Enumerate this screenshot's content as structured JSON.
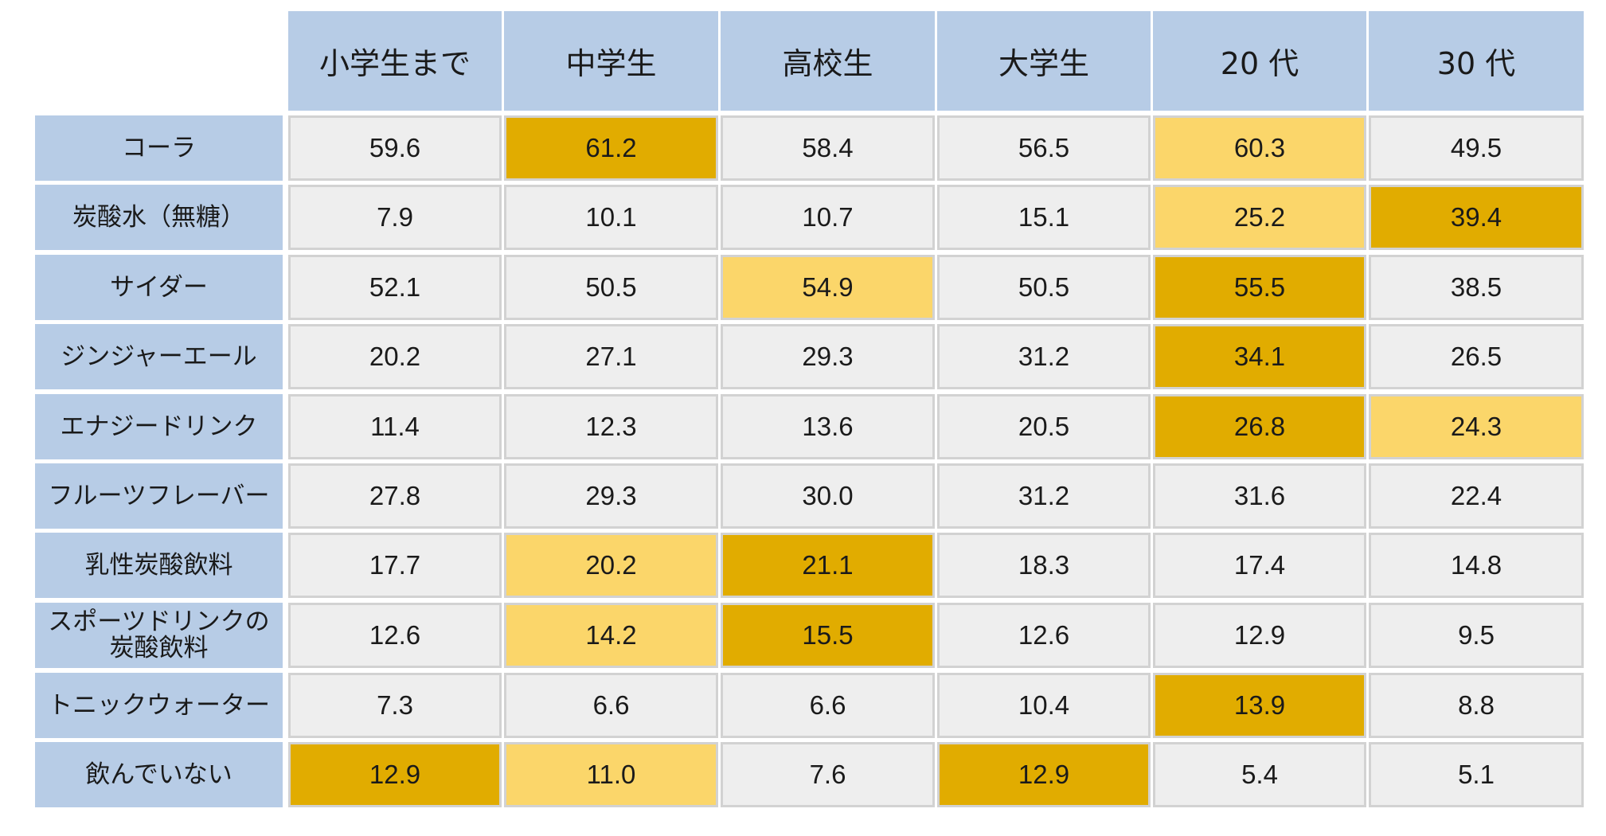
{
  "chart_data": {
    "type": "table",
    "columns": [
      "小学生まで",
      "中学生",
      "高校生",
      "大学生",
      "20 代",
      "30 代"
    ],
    "rows": [
      {
        "label": "コーラ",
        "values": [
          "59.6",
          "61.2",
          "58.4",
          "56.5",
          "60.3",
          "49.5"
        ],
        "highlight": [
          "none",
          "dark",
          "none",
          "none",
          "light",
          "none"
        ]
      },
      {
        "label": "炭酸水（無糖）",
        "values": [
          "7.9",
          "10.1",
          "10.7",
          "15.1",
          "25.2",
          "39.4"
        ],
        "highlight": [
          "none",
          "none",
          "none",
          "none",
          "light",
          "dark"
        ]
      },
      {
        "label": "サイダー",
        "values": [
          "52.1",
          "50.5",
          "54.9",
          "50.5",
          "55.5",
          "38.5"
        ],
        "highlight": [
          "none",
          "none",
          "light",
          "none",
          "dark",
          "none"
        ]
      },
      {
        "label": "ジンジャーエール",
        "values": [
          "20.2",
          "27.1",
          "29.3",
          "31.2",
          "34.1",
          "26.5"
        ],
        "highlight": [
          "none",
          "none",
          "none",
          "none",
          "dark",
          "none"
        ]
      },
      {
        "label": "エナジードリンク",
        "values": [
          "11.4",
          "12.3",
          "13.6",
          "20.5",
          "26.8",
          "24.3"
        ],
        "highlight": [
          "none",
          "none",
          "none",
          "none",
          "dark",
          "light"
        ]
      },
      {
        "label": "フルーツフレーバー",
        "values": [
          "27.8",
          "29.3",
          "30.0",
          "31.2",
          "31.6",
          "22.4"
        ],
        "highlight": [
          "none",
          "none",
          "none",
          "none",
          "none",
          "none"
        ]
      },
      {
        "label": "乳性炭酸飲料",
        "values": [
          "17.7",
          "20.2",
          "21.1",
          "18.3",
          "17.4",
          "14.8"
        ],
        "highlight": [
          "none",
          "light",
          "dark",
          "none",
          "none",
          "none"
        ]
      },
      {
        "label": "スポーツドリンクの炭酸飲料",
        "values": [
          "12.6",
          "14.2",
          "15.5",
          "12.6",
          "12.9",
          "9.5"
        ],
        "highlight": [
          "none",
          "light",
          "dark",
          "none",
          "none",
          "none"
        ]
      },
      {
        "label": "トニックウォーター",
        "values": [
          "7.3",
          "6.6",
          "6.6",
          "10.4",
          "13.9",
          "8.8"
        ],
        "highlight": [
          "none",
          "none",
          "none",
          "none",
          "dark",
          "none"
        ]
      },
      {
        "label": "飲んでいない",
        "values": [
          "12.9",
          "11.0",
          "7.6",
          "12.9",
          "5.4",
          "5.1"
        ],
        "highlight": [
          "dark",
          "light",
          "none",
          "dark",
          "none",
          "none"
        ]
      }
    ],
    "colors": {
      "header_bg": "#b7cce6",
      "cell_bg": "#eeeeee",
      "highlight_light": "#fbd66a",
      "highlight_dark": "#e1ac00"
    }
  }
}
